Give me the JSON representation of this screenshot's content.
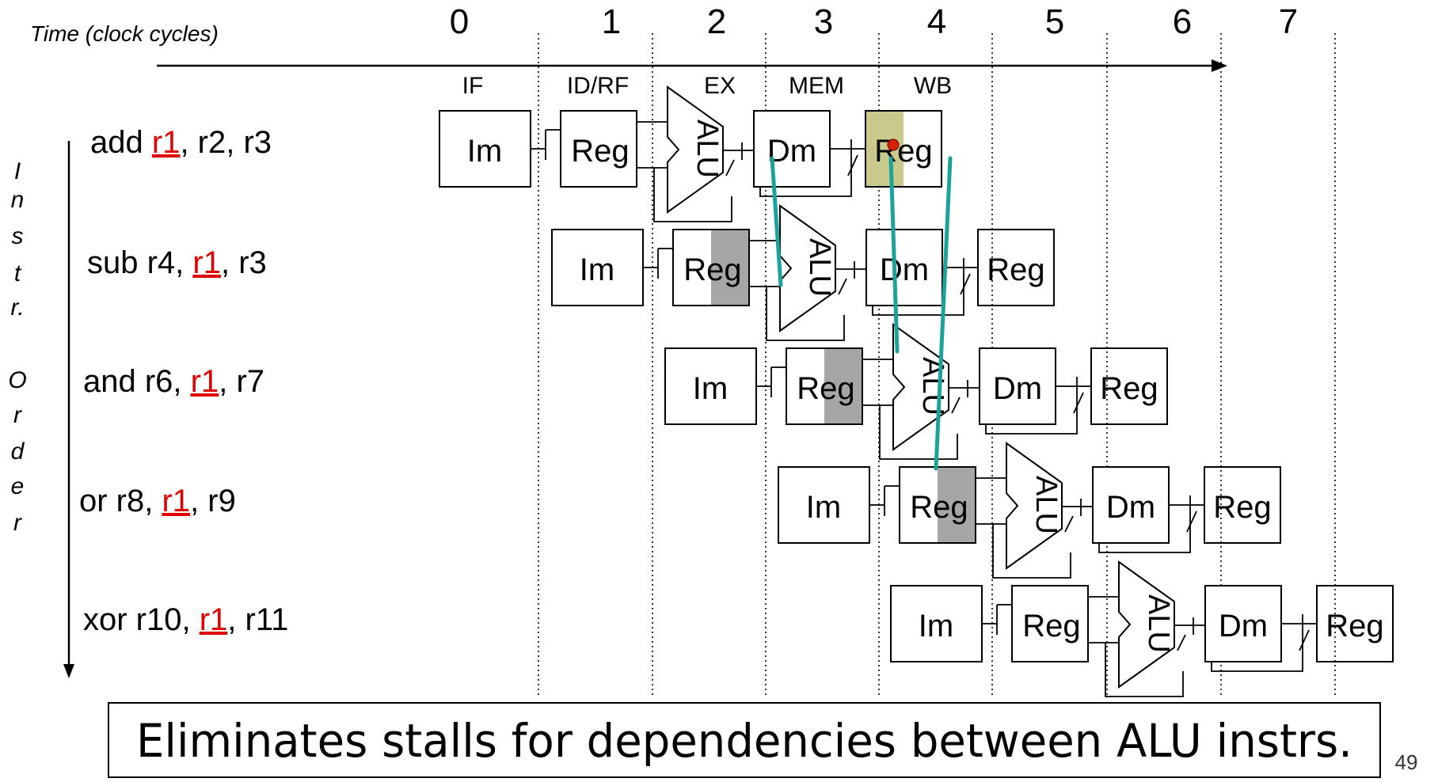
{
  "time_label": "Time (clock cycles)",
  "cycles": [
    "0",
    "1",
    "2",
    "3",
    "4",
    "5",
    "6",
    "7"
  ],
  "stage_labels": [
    "IF",
    "ID/RF",
    "EX",
    "MEM",
    "WB"
  ],
  "order_label": [
    "I",
    "n",
    "s",
    "t",
    "r.",
    "",
    "O",
    "r",
    "d",
    "e",
    "r"
  ],
  "instructions": [
    {
      "pre": "add ",
      "reg": "r1",
      "post": ", r2, r3"
    },
    {
      "pre": "sub r4, ",
      "reg": "r1",
      "post": ", r3"
    },
    {
      "pre": "and r6, ",
      "reg": "r1",
      "post": ", r7"
    },
    {
      "pre": "or r8, ",
      "reg": "r1",
      "post": ", r9"
    },
    {
      "pre": "xor r10, ",
      "reg": "r1",
      "post": ", r11"
    }
  ],
  "units": {
    "im": "Im",
    "reg": "Reg",
    "alu": "ALU",
    "dm": "Dm"
  },
  "caption": "Eliminates stalls for dependencies between ALU instrs.",
  "page_number": "49",
  "colors": {
    "ink": "#000000",
    "dependency_red": "#e00000",
    "forward_line": "#1aa39a",
    "write_highlight": "#c8c98a",
    "read_highlight": "#a6a6a6",
    "dot": "#d62000"
  }
}
